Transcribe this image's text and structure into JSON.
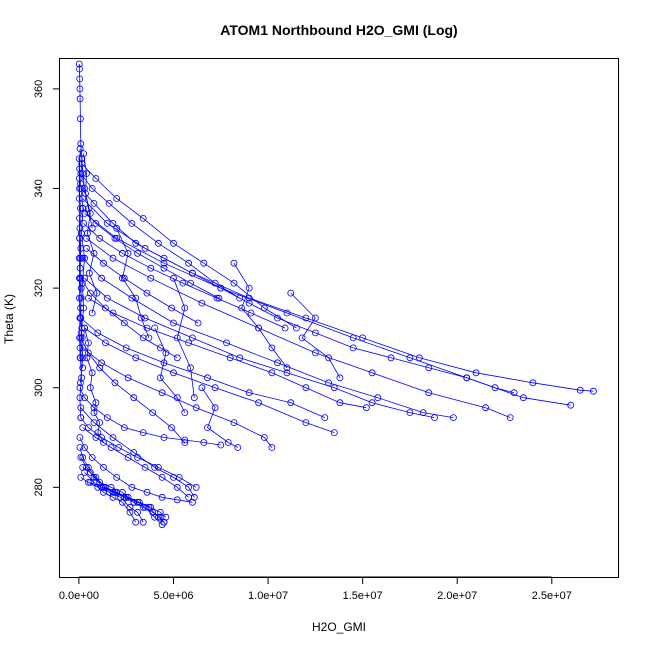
{
  "chart_data": {
    "type": "scatter",
    "title": "ATOM1 Northbound H2O_GMI (Log)",
    "xlabel": "H2O_GMI",
    "ylabel": "Theta (K)",
    "xlim": [
      -1000000,
      28500000
    ],
    "ylim": [
      262,
      366
    ],
    "x_ticks": [
      {
        "value": 0,
        "label": "0.0e+00"
      },
      {
        "value": 5000000,
        "label": "5.0e+06"
      },
      {
        "value": 10000000,
        "label": "1.0e+07"
      },
      {
        "value": 15000000,
        "label": "1.5e+07"
      },
      {
        "value": 20000000,
        "label": "2.0e+07"
      },
      {
        "value": 25000000,
        "label": "2.5e+07"
      }
    ],
    "y_ticks": [
      {
        "value": 280,
        "label": "280"
      },
      {
        "value": 300,
        "label": "300"
      },
      {
        "value": 320,
        "label": "320"
      },
      {
        "value": 340,
        "label": "340"
      },
      {
        "value": 360,
        "label": "360"
      }
    ],
    "grid": false,
    "series_color": "#0000ff",
    "series": [
      {
        "x": [
          20000,
          30000,
          40000,
          50000,
          60000,
          80000,
          100000,
          150000,
          200000,
          300000,
          500000,
          700000
        ],
        "y": [
          365,
          364,
          362,
          360,
          358,
          354,
          349,
          346,
          343,
          340,
          336,
          332
        ]
      },
      {
        "x": [
          100000,
          800000,
          1800000,
          3000000,
          4500000,
          6000000,
          7500000,
          9000000,
          10500000,
          12500000,
          14500000,
          16500000,
          18500000,
          20500000,
          22000000,
          23000000
        ],
        "y": [
          340,
          337,
          333,
          329,
          326,
          323,
          320,
          317,
          314,
          311,
          308,
          306,
          304,
          302,
          300,
          299
        ]
      },
      {
        "x": [
          200000,
          1500000,
          3500000,
          6000000,
          9000000,
          12000000,
          15000000,
          18000000,
          21000000,
          24000000,
          26500000,
          27200000
        ],
        "y": [
          338,
          333,
          328,
          323,
          318,
          314,
          310,
          306,
          303,
          301,
          299.5,
          299.3
        ]
      },
      {
        "x": [
          300000,
          2000000,
          4500000,
          7500000,
          11000000,
          14500000,
          17500000,
          20500000,
          23500000,
          26000000
        ],
        "y": [
          335,
          330,
          325,
          320,
          315,
          310,
          306,
          302,
          298,
          296.5
        ]
      },
      {
        "x": [
          400000,
          1800000,
          3800000,
          6500000,
          9500000,
          12500000,
          15500000,
          18500000,
          21500000,
          22800000
        ],
        "y": [
          330,
          326,
          322,
          317,
          312,
          307,
          303,
          299,
          296,
          294
        ]
      },
      {
        "x": [
          200000,
          1200000,
          2800000,
          5000000,
          7800000,
          10500000,
          13200000,
          15800000,
          18200000,
          19800000
        ],
        "y": [
          326,
          322,
          318,
          313,
          309,
          305,
          301,
          298,
          295,
          294
        ]
      },
      {
        "x": [
          300000,
          1500000,
          3500000,
          6000000,
          8500000,
          11000000,
          13500000,
          15500000,
          17500000,
          18800000
        ],
        "y": [
          322,
          318,
          314,
          310,
          306,
          303,
          300,
          297,
          295,
          294
        ]
      },
      {
        "x": [
          500000,
          1800000,
          3600000,
          5800000,
          8000000,
          10200000,
          12000000,
          13800000,
          15200000
        ],
        "y": [
          318,
          315,
          312,
          309,
          306,
          303,
          300,
          297,
          296
        ]
      },
      {
        "x": [
          100000,
          1000000,
          2500000,
          4500000,
          6800000,
          9000000,
          11200000,
          13000000
        ],
        "y": [
          314,
          311,
          308,
          305,
          302,
          299,
          297,
          294
        ]
      },
      {
        "x": [
          200000,
          1200000,
          2600000,
          4400000,
          6200000,
          8200000,
          9800000,
          10200000
        ],
        "y": [
          308,
          305,
          302,
          299,
          296,
          293,
          290,
          288
        ]
      },
      {
        "x": [
          300000,
          1400000,
          3000000,
          5000000,
          7200000,
          9500000,
          12000000,
          13500000
        ],
        "y": [
          312,
          309,
          306,
          303,
          300,
          297,
          293,
          291
        ]
      },
      {
        "x": [
          150000,
          900000,
          2000000,
          3400000,
          5000000,
          6600000,
          8200000,
          9800000,
          11500000
        ],
        "y": [
          345,
          342,
          338,
          334,
          329,
          325,
          321,
          316,
          312
        ]
      },
      {
        "x": [
          250000,
          1100000,
          2300000,
          3800000,
          5500000,
          7300000,
          9100000,
          10900000
        ],
        "y": [
          333,
          330,
          327,
          324,
          321,
          318,
          315,
          312
        ]
      },
      {
        "x": [
          100000,
          700000,
          1600000,
          2800000,
          4200000,
          5800000,
          7200000,
          8500000
        ],
        "y": [
          343,
          340,
          337,
          333,
          329,
          325,
          321,
          318
        ]
      },
      {
        "x": [
          200000,
          900000,
          1900000,
          3100000,
          4500000,
          5900000,
          7400000
        ],
        "y": [
          336,
          333,
          330,
          327,
          324,
          321,
          318
        ]
      },
      {
        "x": [
          400000,
          1300000,
          2400000,
          3600000,
          4900000,
          6300000
        ],
        "y": [
          328,
          325,
          322,
          319,
          316,
          313
        ]
      },
      {
        "x": [
          100000,
          600000,
          1400000,
          2400000,
          3400000,
          4300000,
          5200000
        ],
        "y": [
          322,
          319,
          316,
          313,
          310,
          308,
          306
        ]
      },
      {
        "x": [
          100000,
          500000,
          1100000,
          1900000,
          2900000,
          3900000,
          4900000,
          5600000
        ],
        "y": [
          310,
          307,
          304,
          301,
          298,
          295,
          292,
          289
        ]
      },
      {
        "x": [
          50000,
          300000,
          800000,
          1500000,
          2400000,
          3400000,
          4500000,
          5600000,
          6600000,
          7500000
        ],
        "y": [
          300,
          298,
          296,
          294,
          292,
          291,
          290,
          289.5,
          289,
          288.5
        ]
      },
      {
        "x": [
          100000,
          500000,
          1200000,
          2100000,
          3100000,
          4200000,
          5300000,
          6200000
        ],
        "y": [
          294,
          292,
          290,
          288,
          286,
          284,
          282,
          280
        ]
      },
      {
        "x": [
          50000,
          300000,
          700000,
          1300000,
          2000000,
          2800000,
          3600000,
          4400000,
          5200000,
          6000000
        ],
        "y": [
          290,
          288,
          286,
          284,
          282,
          280,
          279,
          278,
          277.5,
          277
        ]
      },
      {
        "x": [
          50000,
          200000,
          500000,
          900000,
          1400000,
          2000000,
          2600000,
          3200000,
          3800000,
          4300000,
          4600000
        ],
        "y": [
          288,
          286,
          284,
          282,
          280,
          279,
          278,
          277,
          276,
          275,
          274
        ]
      },
      {
        "x": [
          100000,
          400000,
          800000,
          1300000,
          1900000,
          2500000,
          3100000,
          3700000,
          4200000,
          4500000
        ],
        "y": [
          286,
          284,
          282,
          280,
          279,
          278,
          277,
          276,
          274,
          273
        ]
      },
      {
        "x": [
          200000,
          600000,
          1100000,
          1700000,
          2300000,
          2900000,
          3500000,
          4000000,
          4400000
        ],
        "y": [
          284,
          283,
          281,
          280,
          279,
          277,
          276,
          274,
          272.5
        ]
      },
      {
        "x": [
          100000,
          500000,
          1000000,
          1600000,
          2200000,
          2700000,
          3100000,
          3400000
        ],
        "y": [
          282,
          281,
          280,
          279,
          278,
          276,
          275,
          273
        ]
      },
      {
        "x": [
          300000,
          800000,
          1300000,
          1800000,
          2300000,
          2700000,
          3000000
        ],
        "y": [
          283,
          281,
          279,
          278,
          277,
          275,
          273
        ]
      },
      {
        "x": [
          600000,
          1200000,
          1800000,
          2400000,
          2900000,
          3400000,
          3900000,
          4300000,
          4500000
        ],
        "y": [
          281,
          280,
          279,
          278,
          277,
          276,
          275,
          274,
          273
        ]
      },
      {
        "x": [
          100000,
          800000,
          1800000,
          2900000,
          4000000,
          5000000,
          5800000,
          6100000
        ],
        "y": [
          296,
          293,
          290,
          287,
          284,
          282,
          280,
          278
        ]
      },
      {
        "x": [
          200000,
          900000,
          1700000,
          2600000,
          3500000,
          4400000,
          5200000,
          5800000
        ],
        "y": [
          292,
          290,
          288,
          286,
          284,
          282,
          280,
          278
        ]
      },
      {
        "x": [
          60000,
          40000,
          30000,
          80000,
          50000,
          100000,
          70000,
          120000,
          90000,
          150000,
          60000,
          200000
        ],
        "y": [
          348,
          344,
          340,
          336,
          332,
          328,
          324,
          320,
          316,
          312,
          308,
          304
        ]
      },
      {
        "x": [
          150000,
          90000,
          220000,
          130000,
          300000,
          180000,
          250000,
          120000,
          200000,
          80000
        ],
        "y": [
          346,
          341,
          336,
          331,
          326,
          321,
          316,
          311,
          306,
          301
        ]
      },
      {
        "x": [
          40000,
          90000,
          30000,
          120000,
          60000,
          180000,
          80000,
          140000,
          50000,
          100000
        ],
        "y": [
          330,
          326,
          322,
          318,
          314,
          310,
          306,
          302,
          298,
          294
        ]
      },
      {
        "x": [
          250000,
          400000,
          350000,
          600000,
          450000,
          800000,
          550000,
          950000,
          700000
        ],
        "y": [
          347,
          343,
          339,
          335,
          331,
          327,
          323,
          319,
          315
        ]
      },
      {
        "x": [
          10000,
          20000,
          15000,
          25000,
          30000,
          20000,
          40000,
          25000,
          50000,
          35000,
          60000
        ],
        "y": [
          346,
          342,
          338,
          334,
          330,
          326,
          322,
          318,
          314,
          310,
          306
        ]
      },
      {
        "x": [
          300000,
          500000,
          420000,
          700000,
          600000,
          900000,
          800000,
          1100000,
          1000000,
          1300000
        ],
        "y": [
          312,
          309,
          306,
          303,
          300,
          297,
          295,
          293,
          291,
          289
        ]
      },
      {
        "x": [
          5000000,
          5600000,
          5200000,
          5900000,
          6100000
        ],
        "y": [
          322,
          316,
          310,
          304,
          298
        ]
      },
      {
        "x": [
          8200000,
          9000000,
          8600000,
          9500000,
          10200000,
          11000000
        ],
        "y": [
          325,
          320,
          316,
          312,
          308,
          304
        ]
      },
      {
        "x": [
          11200000,
          12500000,
          11800000,
          13200000,
          13800000
        ],
        "y": [
          319,
          314,
          310,
          306,
          302
        ]
      },
      {
        "x": [
          6500000,
          7200000,
          6800000,
          7900000,
          8400000
        ],
        "y": [
          300,
          296,
          292,
          289,
          288
        ]
      },
      {
        "x": [
          4000000,
          4600000,
          4300000,
          5200000,
          5600000
        ],
        "y": [
          312,
          307,
          302,
          298,
          295
        ]
      },
      {
        "x": [
          2000000,
          2600000,
          2300000,
          3000000,
          3300000,
          3700000
        ],
        "y": [
          332,
          327,
          322,
          318,
          314,
          310
        ]
      }
    ]
  }
}
